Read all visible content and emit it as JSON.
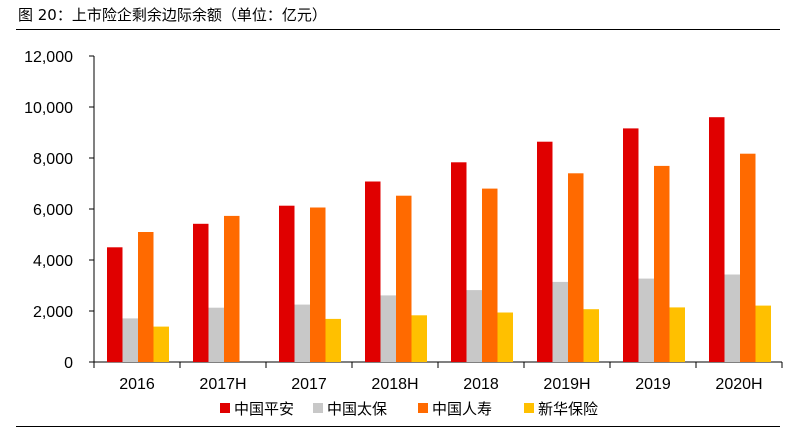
{
  "figure": {
    "title": "图 20：上市险企剩余边际余额（单位：亿元）"
  },
  "chart_data": {
    "type": "bar",
    "title": "图 20：上市险企剩余边际余额（单位：亿元）",
    "xlabel": "",
    "ylabel": "",
    "ylim": [
      0,
      12000
    ],
    "yticks": [
      0,
      2000,
      4000,
      6000,
      8000,
      10000,
      12000
    ],
    "ytick_labels": [
      "0",
      "2,000",
      "4,000",
      "6,000",
      "8,000",
      "10,000",
      "12,000"
    ],
    "grid": false,
    "legend_position": "bottom",
    "categories": [
      "2016",
      "2017H",
      "2017",
      "2018H",
      "2018",
      "2019H",
      "2019",
      "2020H"
    ],
    "series": [
      {
        "name": "中国平安",
        "color": "#e00000",
        "values": [
          4500,
          5420,
          6130,
          7080,
          7830,
          8640,
          9160,
          9600
        ]
      },
      {
        "name": "中国太保",
        "color": "#c8c8c8",
        "values": [
          1710,
          2130,
          2250,
          2610,
          2820,
          3140,
          3270,
          3430
        ]
      },
      {
        "name": "中国人寿",
        "color": "#ff6a00",
        "values": [
          5100,
          5730,
          6060,
          6520,
          6800,
          7400,
          7690,
          8170
        ]
      },
      {
        "name": "新华保险",
        "color": "#ffc000",
        "values": [
          1390,
          null,
          1690,
          1830,
          1940,
          2070,
          2140,
          2210
        ]
      }
    ]
  }
}
